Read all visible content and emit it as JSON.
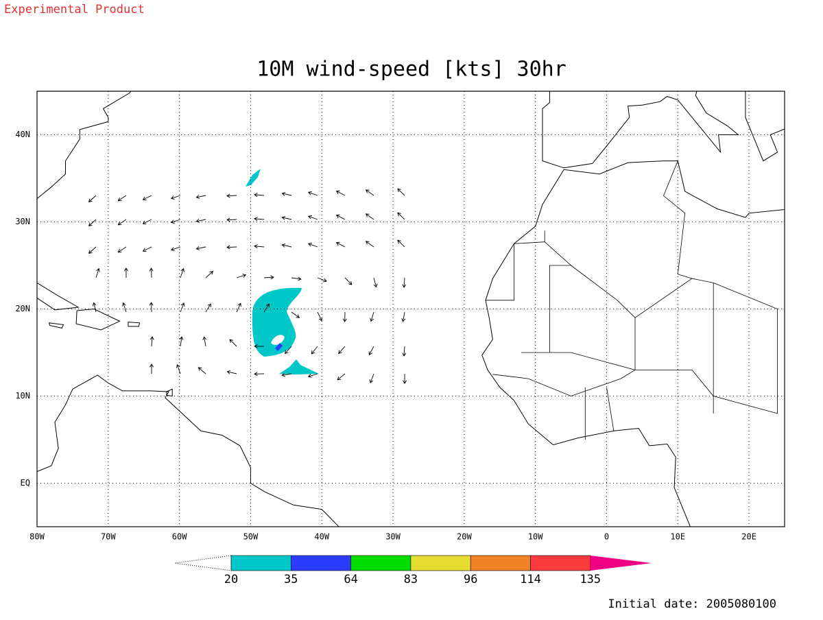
{
  "header": {
    "label": "Experimental Product"
  },
  "title": "10M wind-speed [kts] 30hr",
  "map": {
    "lon_ticks": [
      "80W",
      "70W",
      "60W",
      "50W",
      "40W",
      "30W",
      "20W",
      "10W",
      "0",
      "10E",
      "20E"
    ],
    "lat_ticks": [
      "40N",
      "30N",
      "20N",
      "10N",
      "EQ"
    ]
  },
  "colorbar": {
    "levels": [
      "20",
      "35",
      "64",
      "83",
      "96",
      "114",
      "135"
    ],
    "colors": [
      "#00c8c8",
      "#2c3cff",
      "#00dc00",
      "#e6dc32",
      "#f08228",
      "#fa3c3c",
      "#f00082"
    ]
  },
  "footer": {
    "initial_date": "Initial date: 2005080100"
  }
}
